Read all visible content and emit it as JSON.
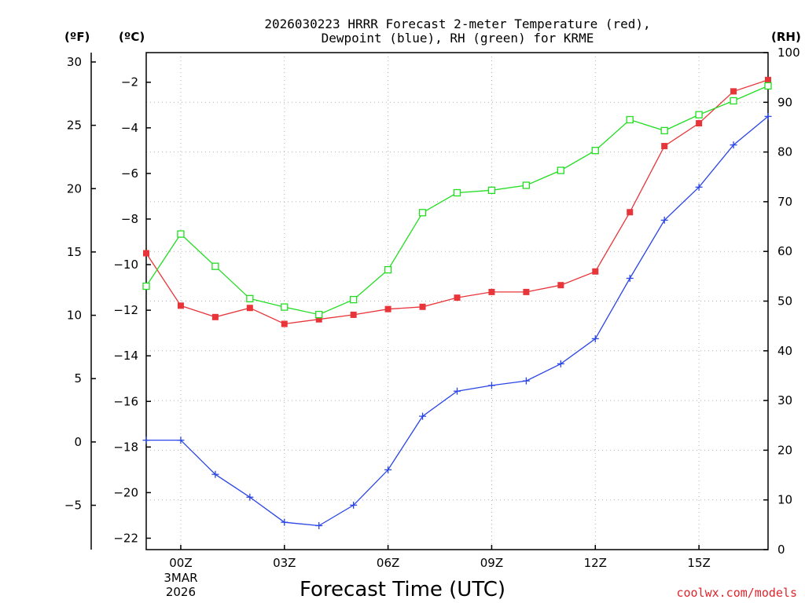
{
  "chart_data": {
    "type": "line",
    "title_line1": "2026030223 HRRR Forecast 2-meter Temperature (red),",
    "title_line2": "Dewpoint (blue), RH (green) for KRME",
    "xlabel": "Forecast Time (UTC)",
    "credit": "coolwx.com/models",
    "units": {
      "fahrenheit": "(ºF)",
      "celsius": "(ºC)",
      "rh": "(RH)"
    },
    "x_hours": [
      -1,
      0,
      1,
      2,
      3,
      4,
      5,
      6,
      7,
      8,
      9,
      10,
      11,
      12,
      13,
      14,
      15,
      16,
      17
    ],
    "x_ticks": [
      {
        "hour": 0,
        "label": "00Z",
        "sub1": "3MAR",
        "sub2": "2026"
      },
      {
        "hour": 3,
        "label": "03Z"
      },
      {
        "hour": 6,
        "label": "06Z"
      },
      {
        "hour": 9,
        "label": "09Z"
      },
      {
        "hour": 12,
        "label": "12Z"
      },
      {
        "hour": 15,
        "label": "15Z"
      }
    ],
    "xlim": [
      -1,
      17
    ],
    "celsius_axis": {
      "ylim": [
        -22.5,
        -0.7
      ],
      "ticks": [
        -2,
        -4,
        -6,
        -8,
        -10,
        -12,
        -14,
        -16,
        -18,
        -20,
        -22
      ],
      "labels": [
        "−2",
        "−4",
        "−6",
        "−8",
        "−10",
        "−12",
        "−14",
        "−16",
        "−18",
        "−20",
        "−22"
      ]
    },
    "fahrenheit_axis": {
      "ticks": [
        30,
        25,
        20,
        15,
        10,
        5,
        0,
        -5
      ],
      "labels": [
        "30",
        "25",
        "20",
        "15",
        "10",
        "5",
        "0",
        "−5"
      ]
    },
    "rh_axis": {
      "ylim": [
        0,
        100
      ],
      "ticks": [
        0,
        10,
        20,
        30,
        40,
        50,
        60,
        70,
        80,
        90,
        100
      ],
      "labels": [
        "0",
        "10",
        "20",
        "30",
        "40",
        "50",
        "60",
        "70",
        "80",
        "90",
        "100"
      ]
    },
    "series": [
      {
        "name": "Temperature",
        "axis": "celsius",
        "color": "#e8353a",
        "marker": "filled-square",
        "values": [
          -9.5,
          -11.8,
          -12.3,
          -11.9,
          -12.6,
          -12.4,
          -12.2,
          -11.95,
          -11.85,
          -11.45,
          -11.2,
          -11.2,
          -10.9,
          -10.3,
          -7.7,
          -4.8,
          -3.8,
          -2.4,
          -1.9
        ]
      },
      {
        "name": "Dewpoint",
        "axis": "celsius",
        "color": "#2a45e6",
        "marker": "plus",
        "values": [
          -17.7,
          -17.7,
          -19.2,
          -20.2,
          -21.3,
          -21.45,
          -20.55,
          -19.0,
          -16.65,
          -15.55,
          -15.3,
          -15.1,
          -14.35,
          -13.25,
          -10.6,
          -8.05,
          -6.6,
          -4.75,
          -3.5
        ]
      },
      {
        "name": "RH",
        "axis": "rh",
        "color": "#22dd22",
        "marker": "open-square",
        "values": [
          53,
          63.5,
          57,
          50.5,
          48.8,
          47.3,
          50.3,
          56.3,
          67.8,
          71.8,
          72.3,
          73.3,
          76.3,
          80.3,
          86.5,
          84.3,
          87.5,
          90.3,
          93.3
        ]
      }
    ]
  }
}
